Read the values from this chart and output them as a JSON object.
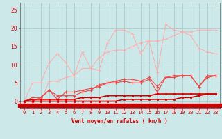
{
  "x": [
    0,
    1,
    2,
    3,
    4,
    5,
    6,
    7,
    8,
    9,
    10,
    11,
    12,
    13,
    14,
    15,
    16,
    17,
    18,
    19,
    20,
    21,
    22,
    23
  ],
  "background_color": "#cce8e8",
  "grid_color": "#aacccc",
  "xlabel": "Vent moyen/en rafales ( km/h )",
  "xlabel_color": "#cc0000",
  "xlabel_fontsize": 5.5,
  "tick_color": "#cc0000",
  "tick_fontsize": 5,
  "ylim": [
    -2,
    27
  ],
  "xlim": [
    -0.5,
    23.5
  ],
  "yticks": [
    0,
    5,
    10,
    15,
    20,
    25
  ],
  "line1_color": "#ffaaaa",
  "line1_y": [
    0,
    5,
    5,
    10.5,
    13,
    10.5,
    7,
    13.5,
    9,
    8.5,
    16,
    19.5,
    19.5,
    18.5,
    13,
    16.5,
    8,
    21,
    19.5,
    19,
    18,
    14.5,
    13.5,
    13
  ],
  "line2_color": "#ffaaaa",
  "line2_y": [
    0,
    0,
    0,
    5.5,
    5.5,
    6.5,
    7,
    9,
    9,
    12,
    13.5,
    14,
    14,
    15,
    16,
    16.5,
    16.5,
    17,
    18,
    19,
    19,
    19.5,
    19.5,
    19.5
  ],
  "line3_color": "#ee4444",
  "line3_y": [
    0,
    1,
    1,
    3,
    1.5,
    1.5,
    1.5,
    2.5,
    3,
    4.5,
    5,
    5.5,
    6,
    6,
    5.5,
    6.5,
    4,
    6.5,
    7,
    7,
    7,
    4,
    6.5,
    7
  ],
  "line4_color": "#ee4444",
  "line4_y": [
    0,
    0,
    1,
    3,
    0.5,
    2.5,
    2.5,
    3,
    3.5,
    4,
    5,
    5,
    5.5,
    5,
    5,
    6,
    2.5,
    6.5,
    6.5,
    7,
    7,
    4,
    7,
    7
  ],
  "line5_color": "#cc0000",
  "line5_y": [
    0,
    0,
    0,
    0,
    0,
    0,
    0,
    0,
    0,
    0,
    0,
    0,
    0.5,
    0.5,
    0.5,
    0.5,
    0.5,
    0.5,
    0.5,
    1,
    1,
    1.5,
    2,
    2
  ],
  "line6_color": "#cc0000",
  "line6_y": [
    0,
    0.5,
    0.5,
    0.5,
    0.5,
    0.5,
    0.5,
    1,
    1,
    1,
    1.5,
    1.5,
    1.5,
    1.5,
    1.5,
    1.5,
    2,
    2,
    2,
    2,
    2,
    2,
    2,
    2
  ],
  "bottom_bar_color": "#cc0000"
}
